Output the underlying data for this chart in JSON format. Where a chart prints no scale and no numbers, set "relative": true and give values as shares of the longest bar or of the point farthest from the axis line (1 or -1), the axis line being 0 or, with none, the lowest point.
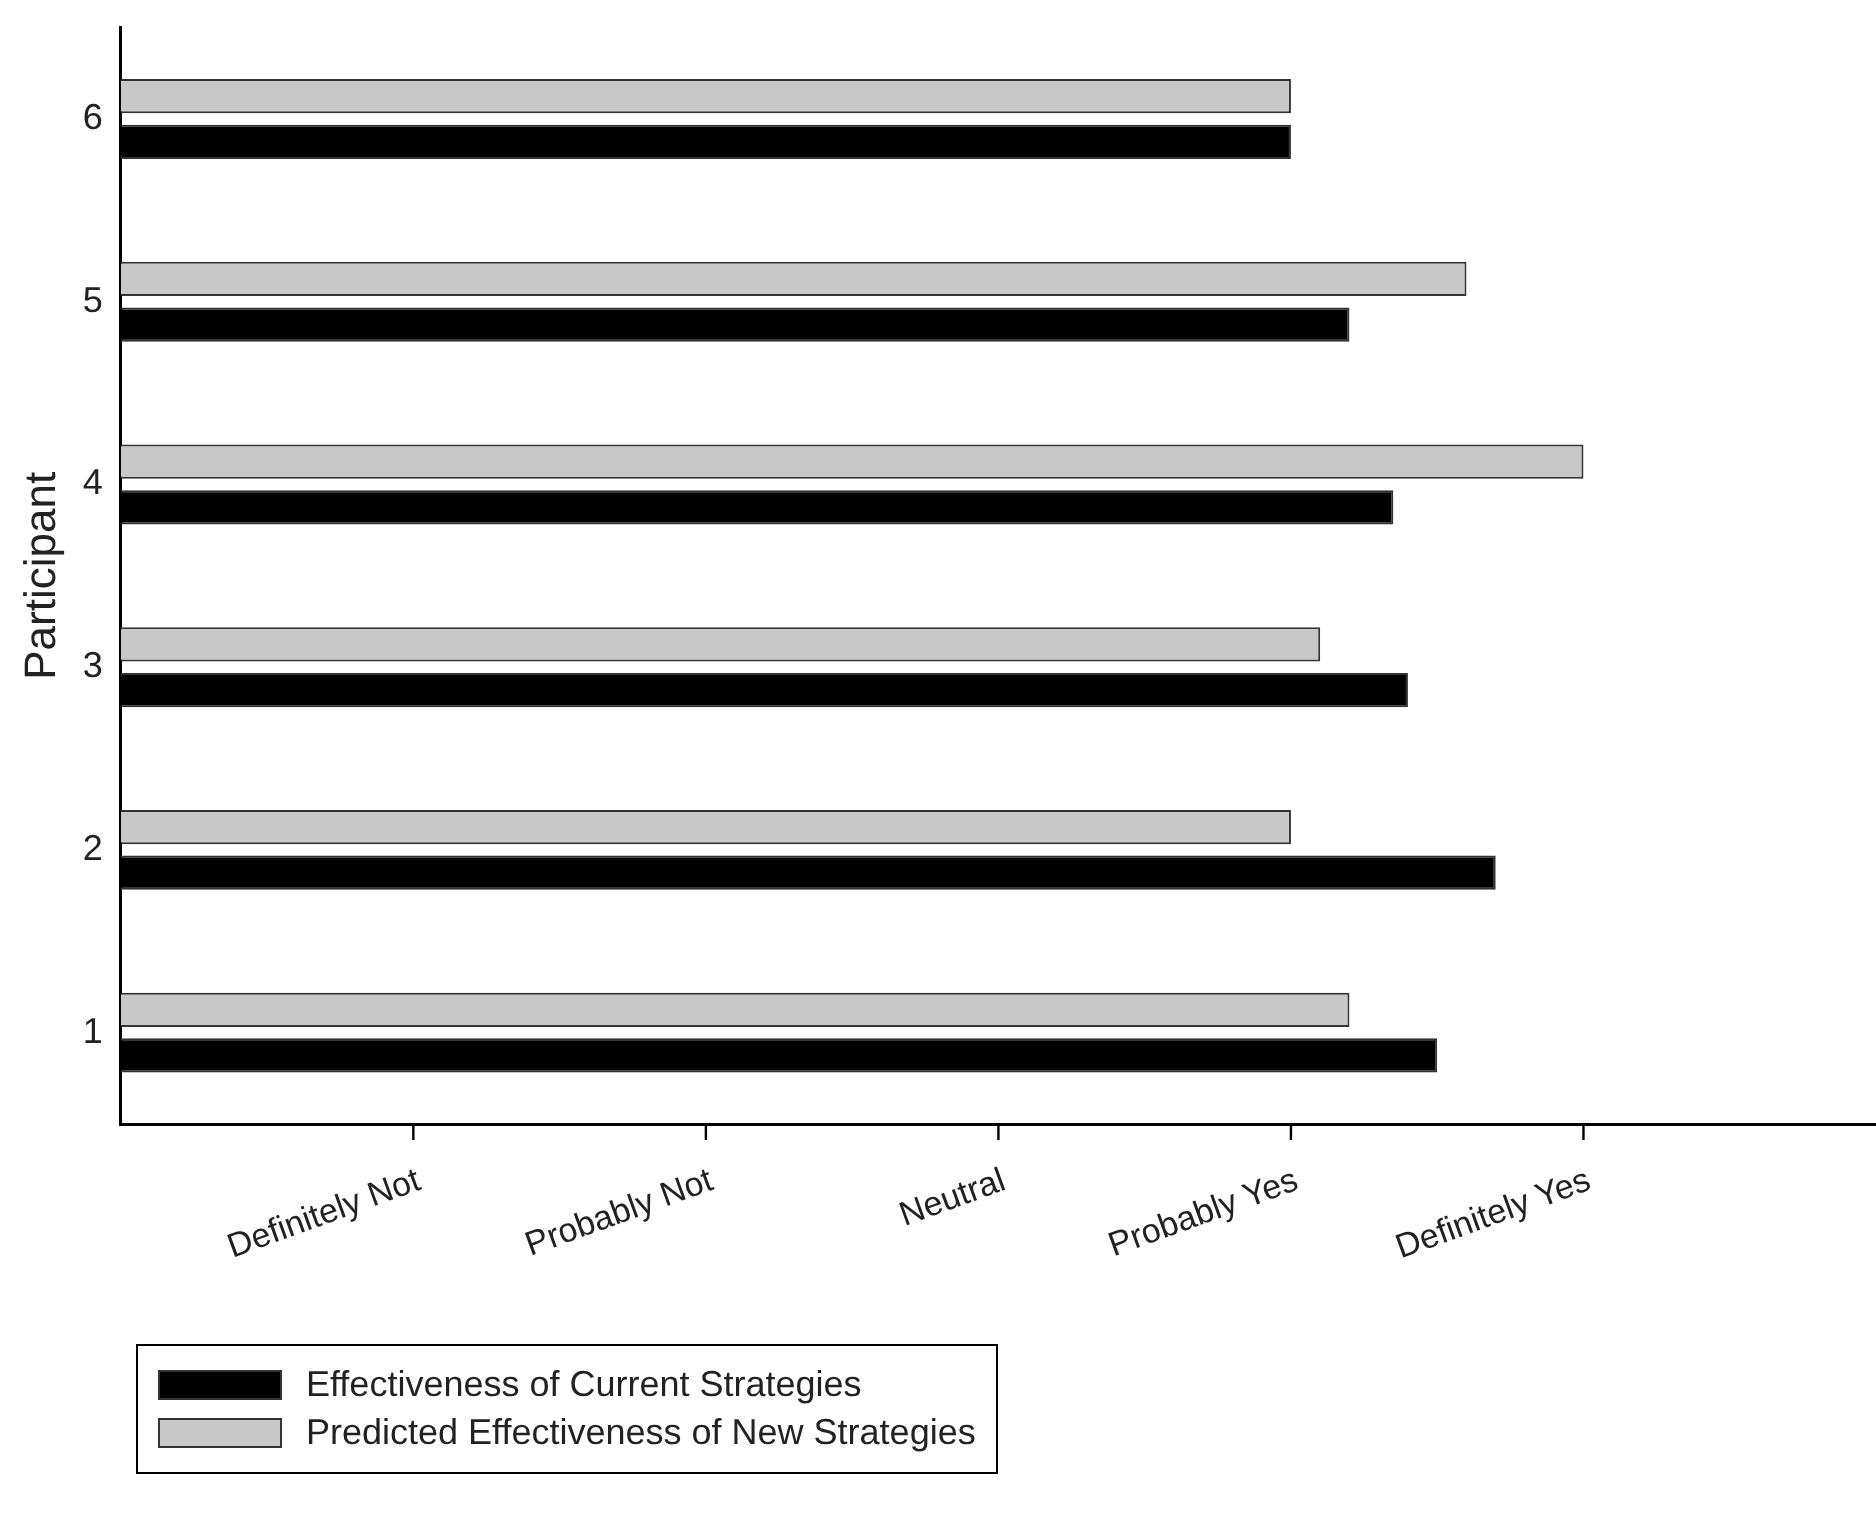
{
  "chart_data": {
    "type": "bar",
    "orientation": "horizontal",
    "relative": true,
    "ylabel": "Participant",
    "categories": [
      "6",
      "5",
      "4",
      "3",
      "2",
      "1"
    ],
    "series": [
      {
        "name": "Effectiveness of Current Strategies",
        "color": "#000000",
        "values": [
          0.8,
          0.84,
          0.87,
          0.88,
          0.94,
          0.9
        ]
      },
      {
        "name": "Predicted Effectiveness of New Strategies",
        "color": "#c8c8c8",
        "values": [
          0.8,
          0.92,
          1,
          0.82,
          0.8,
          0.84
        ]
      }
    ],
    "annotations": [
      "Definitely Not",
      "Probably Not",
      "Neutral",
      "Probably Yes",
      "Definitely Yes"
    ],
    "grid": false,
    "legend": "bottom left"
  }
}
